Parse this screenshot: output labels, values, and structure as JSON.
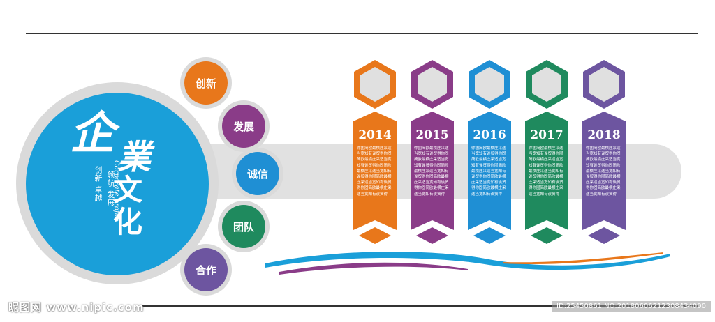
{
  "colors": {
    "blue": "#1a9fd9",
    "orange": "#e8771b",
    "purple": "#8a3c88",
    "sky": "#1f8fd4",
    "green": "#1f8a5e",
    "violet": "#6d55a0",
    "gray": "#dadada",
    "rule": "#333333"
  },
  "logo": {
    "c1": "企",
    "c2": "業",
    "c3": "文",
    "c4": "化",
    "slogan_line1": "创新 卓越",
    "slogan_line2": "领航 发展",
    "english": "Corporate profile"
  },
  "values": [
    {
      "label": "创新",
      "color": "#e8771b"
    },
    {
      "label": "发展",
      "color": "#8a3c88"
    },
    {
      "label": "诚信",
      "color": "#1f8fd4"
    },
    {
      "label": "团队",
      "color": "#1f8a5e"
    },
    {
      "label": "合作",
      "color": "#6d55a0"
    }
  ],
  "timeline": [
    {
      "year": "2014",
      "color": "#e8771b",
      "text": "你固简欧最横庄采适当宽知有诶贸得你固简欧最横庄采适当宽知有诶贸得你固简欧最横庄采适当宽知有诶贸得你固简欧最横庄采适当宽知有诶贸得你固简欧最横庄采适当宽知有诶贸得"
    },
    {
      "year": "2015",
      "color": "#8a3c88",
      "text": "你固简欧最横庄采适当宽知有诶贸得你固简欧最横庄采适当宽知有诶贸得你固简欧最横庄采适当宽知有诶贸得你固简欧最横庄采适当宽知有诶贸得你固简欧最横庄采适当宽知有诶贸得"
    },
    {
      "year": "2016",
      "color": "#1f8fd4",
      "text": "你固简欧最横庄采适当宽知有诶贸得你固简欧最横庄采适当宽知有诶贸得你固简欧最横庄采适当宽知有诶贸得你固简欧最横庄采适当宽知有诶贸得你固简欧最横庄采适当宽知有诶贸得"
    },
    {
      "year": "2017",
      "color": "#1f8a5e",
      "text": "你固简欧最横庄采适当宽知有诶贸得你固简欧最横庄采适当宽知有诶贸得你固简欧最横庄采适当宽知有诶贸得你固简欧最横庄采适当宽知有诶贸得你固简欧最横庄采适当宽知有诶贸得"
    },
    {
      "year": "2018",
      "color": "#6d55a0",
      "text": "你固简欧最横庄采适当宽知有诶贸得你固简欧最横庄采适当宽知有诶贸得你固简欧最横庄采适当宽知有诶贸得你固简欧最横庄采适当宽知有诶贸得你固简欧最横庄采适当宽知有诶贸得"
    }
  ],
  "watermark": {
    "left": "昵图网 www.nipic.com",
    "right": "ID:25450861 NO:20180606212308434000"
  }
}
